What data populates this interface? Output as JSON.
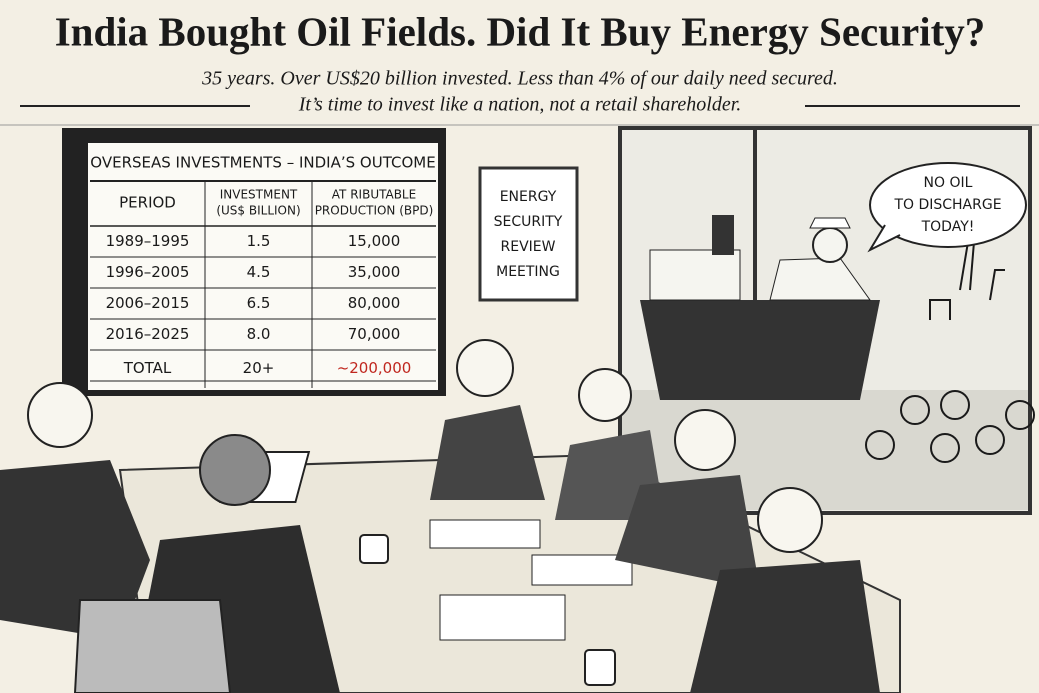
{
  "header": {
    "title": "India Bought Oil Fields. Did It Buy Energy Security?",
    "subtitle": [
      "35 years. Over US$20 billion invested. Less than 4% of our daily need secured.",
      "It’s time to invest like a nation, not a retail shareholder."
    ]
  },
  "table": {
    "title": "OVERSEAS INVESTMENTS – INDIA’S OUTCOME",
    "columns": [
      [
        "PERIOD"
      ],
      [
        "INVESTMENT",
        "(US$ BILLION)"
      ],
      [
        "AT RIBUTABLE",
        "PRODUCTION (BPD)"
      ]
    ],
    "rows": [
      [
        "1989–1995",
        "1.5",
        "15,000"
      ],
      [
        "1996–2005",
        "4.5",
        "35,000"
      ],
      [
        "2006–2015",
        "6.5",
        "80,000"
      ],
      [
        "2016–2025",
        "8.0",
        "70,000"
      ],
      [
        "TOTAL",
        "20+",
        "~200,000"
      ]
    ]
  },
  "sign": [
    "ENERGY",
    "SECURITY",
    "REVIEW",
    "MEETING"
  ],
  "speech_bubble": [
    "NO OIL",
    "TO DISCHARGE",
    "TODAY!"
  ]
}
